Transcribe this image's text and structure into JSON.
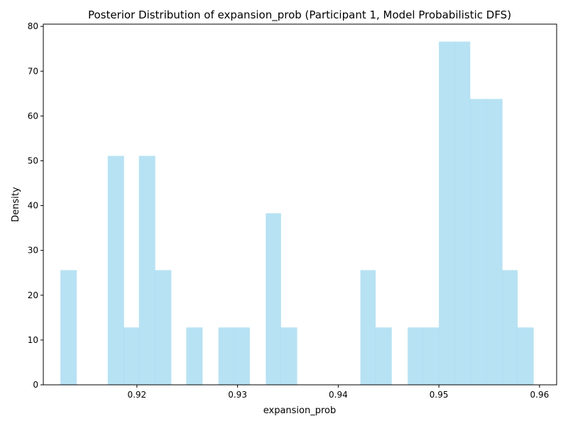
{
  "chart_data": {
    "type": "bar",
    "title": "Posterior Distribution of expansion_prob (Participant 1, Model Probabilistic DFS)",
    "xlabel": "expansion_prob",
    "ylabel": "Density",
    "xlim": [
      0.9107,
      0.9617
    ],
    "ylim": [
      0,
      80.5
    ],
    "xticks": [
      0.92,
      0.93,
      0.94,
      0.95,
      0.96
    ],
    "xtick_labels": [
      "0.92",
      "0.93",
      "0.94",
      "0.95",
      "0.96"
    ],
    "yticks": [
      0,
      10,
      20,
      30,
      40,
      50,
      60,
      70,
      80
    ],
    "ytick_labels": [
      "0",
      "10",
      "20",
      "30",
      "40",
      "50",
      "60",
      "70",
      "80"
    ],
    "grid": false,
    "bar_color": "#87ceeb",
    "bins": [
      {
        "x0": 0.9124,
        "x1": 0.914,
        "density": 25.6
      },
      {
        "x0": 0.914,
        "x1": 0.9155,
        "density": 0
      },
      {
        "x0": 0.9155,
        "x1": 0.9171,
        "density": 0
      },
      {
        "x0": 0.9171,
        "x1": 0.9187,
        "density": 51.1
      },
      {
        "x0": 0.9187,
        "x1": 0.9202,
        "density": 12.8
      },
      {
        "x0": 0.9202,
        "x1": 0.9218,
        "density": 51.1
      },
      {
        "x0": 0.9218,
        "x1": 0.9234,
        "density": 25.6
      },
      {
        "x0": 0.9234,
        "x1": 0.9249,
        "density": 0
      },
      {
        "x0": 0.9249,
        "x1": 0.9265,
        "density": 12.8
      },
      {
        "x0": 0.9265,
        "x1": 0.9281,
        "density": 0
      },
      {
        "x0": 0.9281,
        "x1": 0.9296,
        "density": 12.8
      },
      {
        "x0": 0.9296,
        "x1": 0.9312,
        "density": 12.8
      },
      {
        "x0": 0.9312,
        "x1": 0.9328,
        "density": 0
      },
      {
        "x0": 0.9328,
        "x1": 0.9343,
        "density": 38.3
      },
      {
        "x0": 0.9343,
        "x1": 0.9359,
        "density": 12.8
      },
      {
        "x0": 0.9359,
        "x1": 0.9375,
        "density": 0
      },
      {
        "x0": 0.9375,
        "x1": 0.939,
        "density": 0
      },
      {
        "x0": 0.939,
        "x1": 0.9406,
        "density": 0
      },
      {
        "x0": 0.9406,
        "x1": 0.9422,
        "density": 0
      },
      {
        "x0": 0.9422,
        "x1": 0.9437,
        "density": 25.6
      },
      {
        "x0": 0.9437,
        "x1": 0.9453,
        "density": 12.8
      },
      {
        "x0": 0.9453,
        "x1": 0.9469,
        "density": 0
      },
      {
        "x0": 0.9469,
        "x1": 0.9484,
        "density": 12.8
      },
      {
        "x0": 0.9484,
        "x1": 0.95,
        "density": 12.8
      },
      {
        "x0": 0.95,
        "x1": 0.9516,
        "density": 76.6
      },
      {
        "x0": 0.9516,
        "x1": 0.9531,
        "density": 76.6
      },
      {
        "x0": 0.9531,
        "x1": 0.9547,
        "density": 63.8
      },
      {
        "x0": 0.9547,
        "x1": 0.9563,
        "density": 63.8
      },
      {
        "x0": 0.9563,
        "x1": 0.9578,
        "density": 25.6
      },
      {
        "x0": 0.9578,
        "x1": 0.9594,
        "density": 12.8
      }
    ]
  }
}
